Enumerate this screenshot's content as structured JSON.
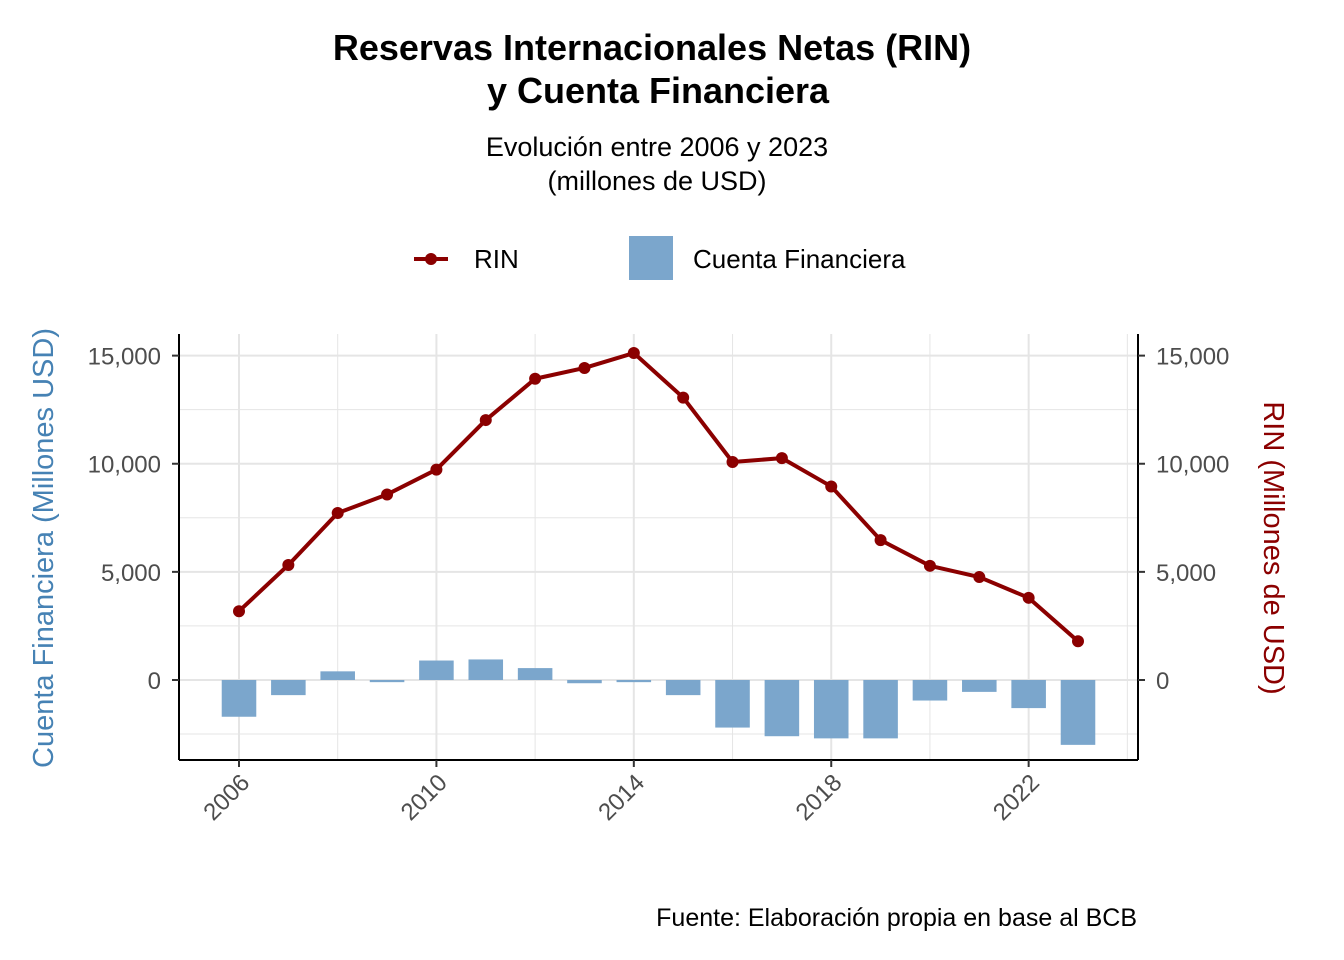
{
  "chart_data": {
    "type": "bar+line",
    "title_line1": "Reservas Internacionales Netas (RIN)",
    "title_line2": "y Cuenta Financiera",
    "subtitle_line1": "Evolución entre 2006 y 2023",
    "subtitle_line2": "(millones de USD)",
    "caption": "Fuente: Elaboración propia en base al BCB",
    "ylabel_left": "Cuenta Financiera (Millones USD)",
    "ylabel_right": "RIN (Millones de USD)",
    "legend": {
      "placement": "top",
      "items": [
        {
          "name": "RIN",
          "kind": "line"
        },
        {
          "name": "Cuenta Financiera",
          "kind": "bar"
        }
      ]
    },
    "x": [
      2006,
      2007,
      2008,
      2009,
      2010,
      2011,
      2012,
      2013,
      2014,
      2015,
      2016,
      2017,
      2018,
      2019,
      2020,
      2021,
      2022,
      2023
    ],
    "x_ticks": [
      "2006",
      "2010",
      "2014",
      "2018",
      "2022"
    ],
    "y_ticks": [
      "0",
      "5,000",
      "10,000",
      "15,000"
    ],
    "ylim": [
      -3700,
      16000
    ],
    "grid": true,
    "series": [
      {
        "name": "RIN",
        "type": "line",
        "color": "#8b0000",
        "values": [
          3180,
          5320,
          7720,
          8580,
          9730,
          12020,
          13930,
          14430,
          15120,
          13060,
          10080,
          10260,
          8950,
          6470,
          5280,
          4760,
          3800,
          1790
        ]
      },
      {
        "name": "Cuenta Financiera",
        "type": "bar",
        "color": "#7ba6cc",
        "values": [
          -1700,
          -700,
          400,
          -100,
          900,
          950,
          550,
          -150,
          -100,
          -700,
          -2200,
          -2600,
          -2700,
          -2700,
          -950,
          -550,
          -1300,
          -3000
        ]
      }
    ]
  }
}
